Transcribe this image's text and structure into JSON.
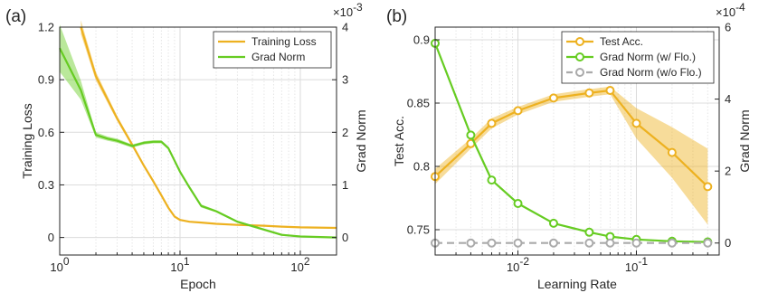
{
  "colors": {
    "orange": "#EDB120",
    "green": "#66CC22",
    "gray": "#AAAAAA",
    "axis": "#262626"
  },
  "chart_data": [
    {
      "panel": "(a)",
      "type": "line",
      "x_scale": "log",
      "xlim": [
        1,
        200
      ],
      "xlabel": "Epoch",
      "x_ticks": [
        {
          "v": 1,
          "base": "10",
          "exp": "0"
        },
        {
          "v": 10,
          "base": "10",
          "exp": "1"
        },
        {
          "v": 100,
          "base": "10",
          "exp": "2"
        }
      ],
      "ylabel_left": "Training Loss",
      "ylim_left": [
        -0.1,
        1.2
      ],
      "yticks_left": [
        "0",
        "0.3",
        "0.6",
        "0.9",
        "1.2"
      ],
      "ylabel_right": "Grad Norm",
      "ylim_right": [
        -0.333,
        4
      ],
      "yticks_right": [
        "0",
        "1",
        "2",
        "3",
        "4"
      ],
      "right_exponent": {
        "base": "×10",
        "exp": "-3"
      },
      "grid": true,
      "legend_position": "top-right",
      "series": [
        {
          "name": "Training Loss",
          "axis": "left",
          "color": "#EDB120",
          "marker": "none",
          "x": [
            1.5,
            2,
            3,
            4,
            5,
            6,
            7,
            8,
            9,
            10,
            12,
            15,
            20,
            30,
            50,
            70,
            100,
            200
          ],
          "y": [
            1.2,
            0.92,
            0.68,
            0.53,
            0.41,
            0.32,
            0.24,
            0.17,
            0.12,
            0.1,
            0.09,
            0.085,
            0.078,
            0.072,
            0.067,
            0.062,
            0.058,
            0.055
          ],
          "band": [
            0.04,
            0.025,
            0.015,
            0.012,
            0.01,
            0.01,
            0.008,
            0.007,
            0.006,
            0.005,
            0.004,
            0.004,
            0.003,
            0.003,
            0.003,
            0.003,
            0.003,
            0.003
          ]
        },
        {
          "name": "Grad Norm",
          "axis": "right",
          "color": "#66CC22",
          "marker": "none",
          "x": [
            1,
            1.5,
            2,
            2.5,
            3,
            4,
            5,
            6,
            7,
            8,
            10,
            12,
            15,
            20,
            30,
            50,
            70,
            100,
            200
          ],
          "y": [
            3.6,
            2.8,
            1.95,
            1.88,
            1.84,
            1.74,
            1.8,
            1.82,
            1.82,
            1.7,
            1.25,
            0.95,
            0.6,
            0.5,
            0.3,
            0.15,
            0.05,
            0.02,
            0.0
          ],
          "band": [
            0.45,
            0.18,
            0.05,
            0.04,
            0.04,
            0.03,
            0.03,
            0.03,
            0.03,
            0.03,
            0.03,
            0.03,
            0.03,
            0.02,
            0.02,
            0.02,
            0.02,
            0.01,
            0.01
          ]
        }
      ]
    },
    {
      "panel": "(b)",
      "type": "line",
      "x_scale": "log",
      "xlim": [
        0.002,
        0.5
      ],
      "xlabel": "Learning Rate",
      "x_ticks": [
        {
          "v": 0.01,
          "base": "10",
          "exp": "-2"
        },
        {
          "v": 0.1,
          "base": "10",
          "exp": "-1"
        }
      ],
      "ylabel_left": "Test Acc.",
      "ylim_left": [
        0.73,
        0.91
      ],
      "yticks_left": [
        "0.75",
        "0.8",
        "0.85",
        "0.9"
      ],
      "ylabel_right": "Grad Norm",
      "ylim_right": [
        -0.333,
        6
      ],
      "yticks_right": [
        "0",
        "2",
        "4",
        "6"
      ],
      "right_exponent": {
        "base": "×10",
        "exp": "-4"
      },
      "grid": true,
      "legend_position": "top-right",
      "series": [
        {
          "name": "Test Acc.",
          "axis": "left",
          "color": "#EDB120",
          "marker": "circle",
          "x": [
            0.002,
            0.004,
            0.006,
            0.01,
            0.02,
            0.04,
            0.06,
            0.1,
            0.2,
            0.4
          ],
          "y": [
            0.792,
            0.818,
            0.834,
            0.844,
            0.854,
            0.858,
            0.86,
            0.834,
            0.811,
            0.784
          ],
          "band": [
            0.006,
            0.004,
            0.004,
            0.003,
            0.003,
            0.003,
            0.003,
            0.012,
            0.02,
            0.03
          ]
        },
        {
          "name": "Grad Norm (w/ Flo.)",
          "axis": "right",
          "color": "#66CC22",
          "marker": "circle",
          "x": [
            0.002,
            0.004,
            0.006,
            0.01,
            0.02,
            0.04,
            0.06,
            0.1,
            0.2,
            0.4
          ],
          "y": [
            5.55,
            3.0,
            1.75,
            1.1,
            0.55,
            0.3,
            0.18,
            0.1,
            0.05,
            0.03
          ]
        },
        {
          "name": "Grad Norm (w/o Flo.)",
          "axis": "right",
          "color": "#AAAAAA",
          "marker": "circle",
          "dashed": true,
          "x": [
            0.002,
            0.004,
            0.006,
            0.01,
            0.02,
            0.04,
            0.06,
            0.1,
            0.2,
            0.4
          ],
          "y": [
            0,
            0,
            0,
            0,
            0,
            0,
            0,
            0,
            0,
            0
          ]
        }
      ]
    }
  ]
}
